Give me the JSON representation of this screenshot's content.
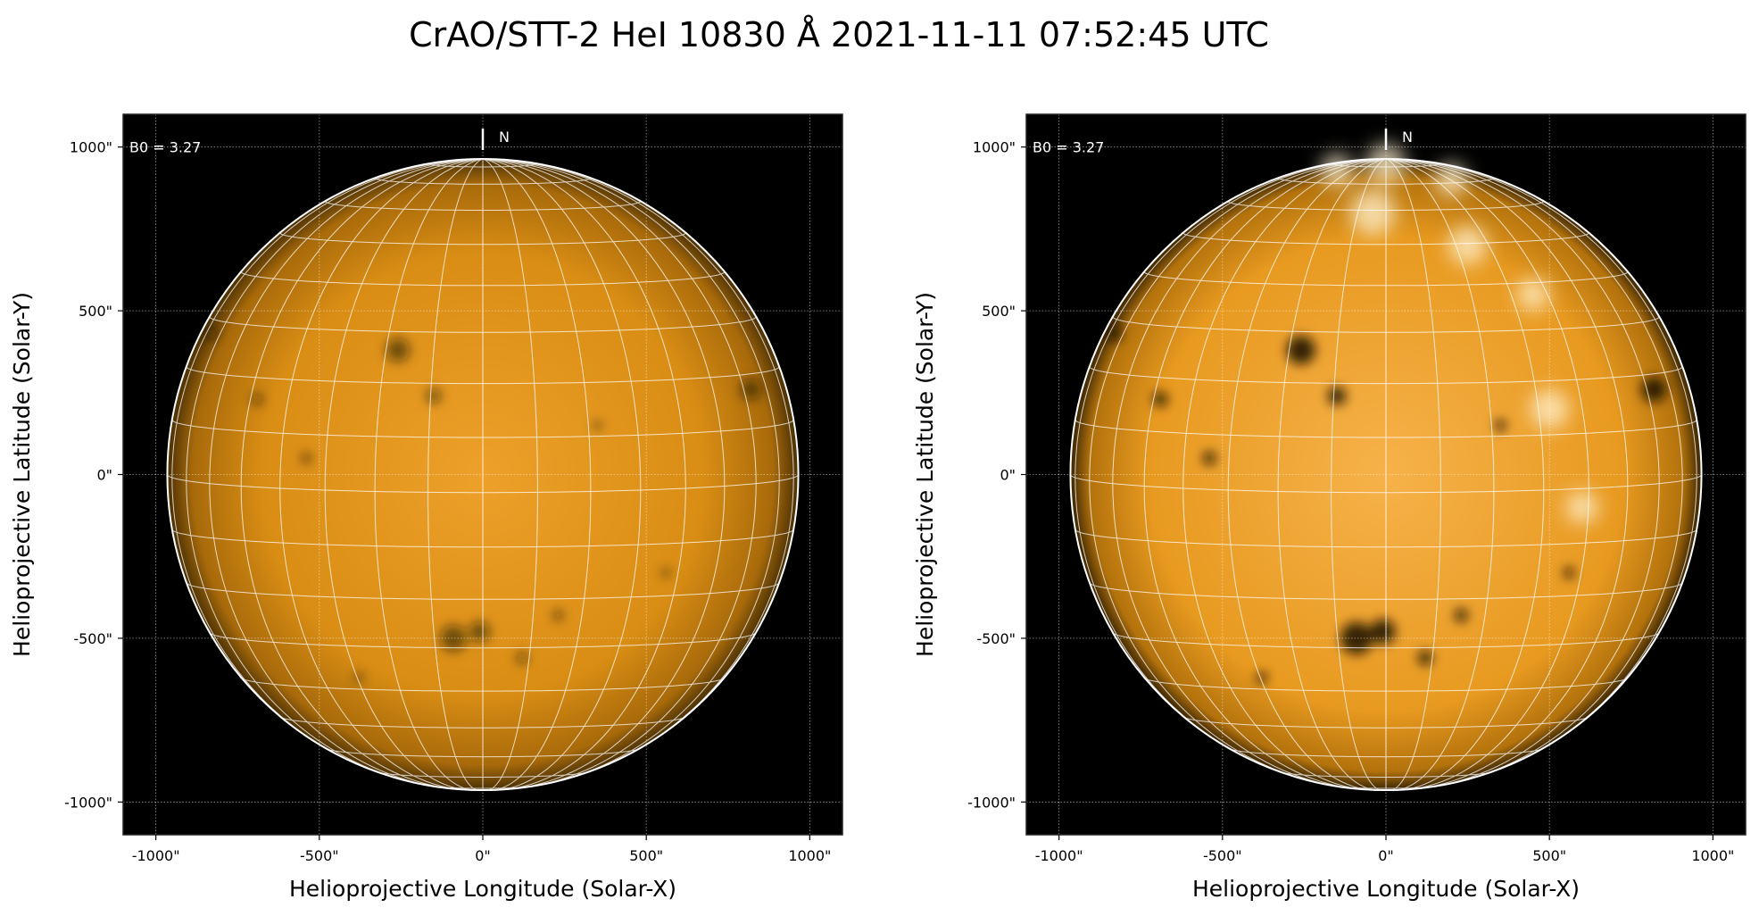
{
  "title": "CrAO/STT-2 HeI 10830 Å 2021-11-11 07:52:45 UTC",
  "colors": {
    "disk_bright": "#f5a623",
    "disk_mid": "#d98b0c",
    "disk_limb": "#5a3a05",
    "background": "#000000",
    "grid": "#ffffff"
  },
  "chart_data": [
    {
      "type": "heatmap",
      "variant": "linear contrast",
      "xlabel": "Helioprojective Longitude (Solar-X)",
      "ylabel": "Helioprojective Latitude (Solar-Y)",
      "xlim": [
        -1100,
        1100
      ],
      "ylim": [
        -1100,
        1100
      ],
      "xticks": [
        -1000,
        -500,
        0,
        500,
        1000
      ],
      "yticks": [
        -1000,
        -500,
        0,
        500,
        1000
      ],
      "xtick_labels": [
        "-1000\"",
        "-500\"",
        "0\"",
        "500\"",
        "1000\""
      ],
      "ytick_labels": [
        "-1000\"",
        "-500\"",
        "0\"",
        "500\"",
        "1000\""
      ],
      "grid": true,
      "heliographic_grid_spacing_deg": 10,
      "solar_radius_arcsec": 965,
      "b0_deg": 3.27,
      "b0_label": "B0 = 3.27",
      "north_label": "N",
      "colormap": "orange (HeI)"
    },
    {
      "type": "heatmap",
      "variant": "enhanced contrast",
      "xlabel": "Helioprojective Longitude (Solar-X)",
      "ylabel": "Helioprojective Latitude (Solar-Y)",
      "xlim": [
        -1100,
        1100
      ],
      "ylim": [
        -1100,
        1100
      ],
      "xticks": [
        -1000,
        -500,
        0,
        500,
        1000
      ],
      "yticks": [
        -1000,
        -500,
        0,
        500,
        1000
      ],
      "xtick_labels": [
        "-1000\"",
        "-500\"",
        "0\"",
        "500\"",
        "1000\""
      ],
      "ytick_labels": [
        "-1000\"",
        "-500\"",
        "0\"",
        "500\"",
        "1000\""
      ],
      "grid": true,
      "heliographic_grid_spacing_deg": 10,
      "solar_radius_arcsec": 965,
      "b0_deg": 3.27,
      "b0_label": "B0 = 3.27",
      "north_label": "N",
      "colormap": "orange (HeI)"
    }
  ]
}
